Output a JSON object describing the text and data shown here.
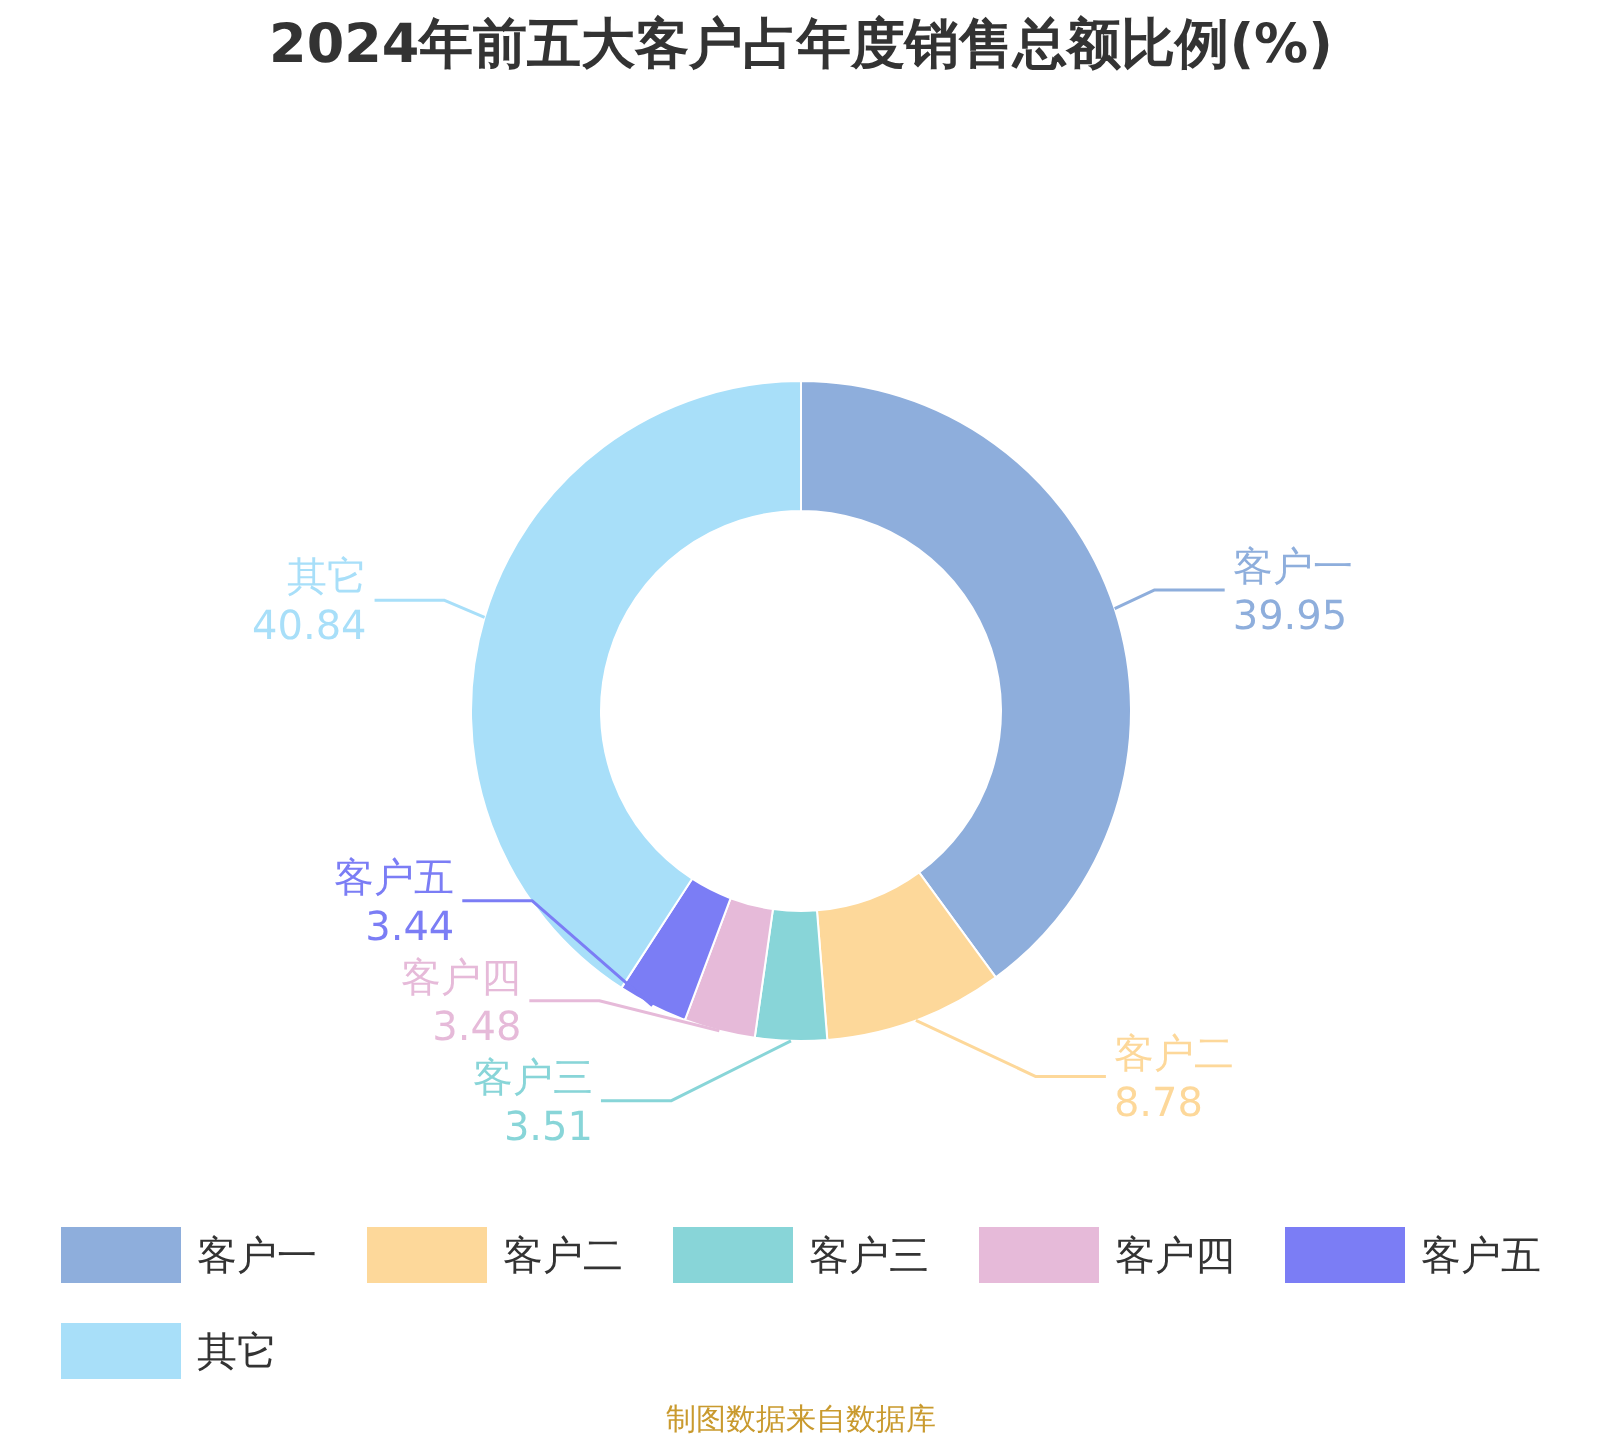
{
  "chart_data": {
    "type": "donut",
    "title": "2024年前五大客户占年度销售总额比例(%)",
    "categories": [
      "客户一",
      "客户二",
      "客户三",
      "客户四",
      "客户五",
      "其它"
    ],
    "values": [
      39.95,
      8.78,
      3.51,
      3.48,
      3.44,
      40.84
    ],
    "colors": [
      "#8eaedc",
      "#fdd89a",
      "#88d5d8",
      "#e6bad9",
      "#7b7df5",
      "#a8dff9"
    ],
    "data_labels": true,
    "legend": "bottom",
    "annotations": [
      "制图数据来自数据库"
    ]
  }
}
